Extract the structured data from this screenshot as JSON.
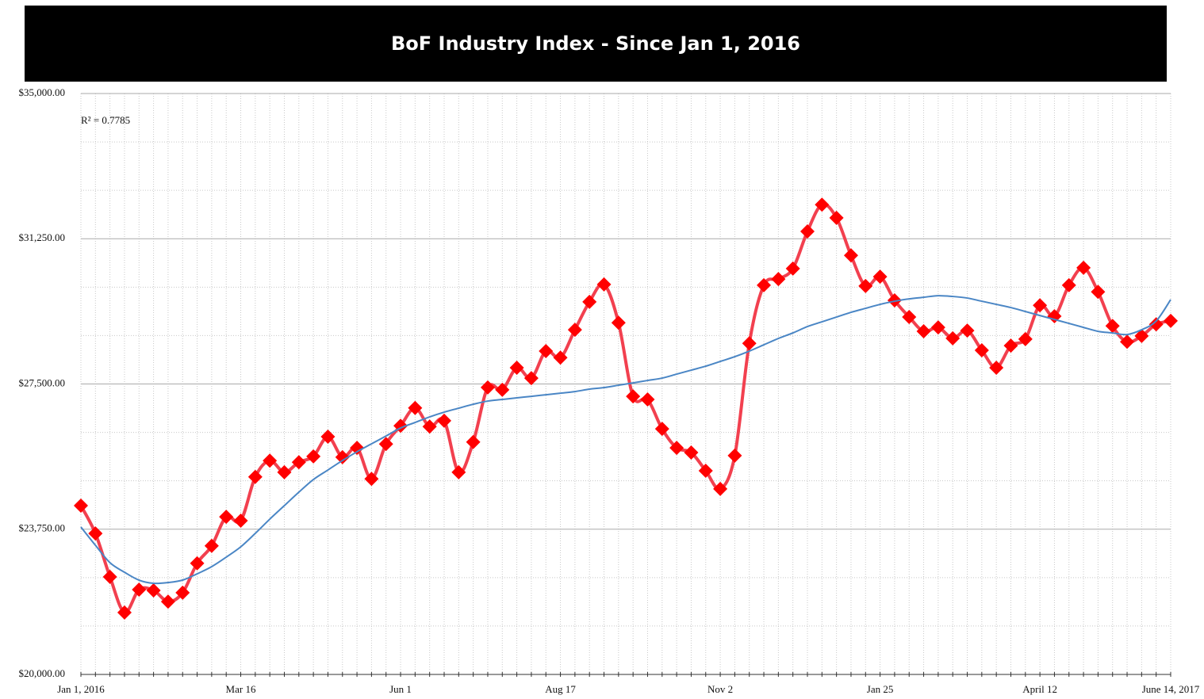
{
  "chart_data": {
    "type": "line",
    "title": "BoF Industry Index - Since Jan 1, 2016",
    "annotation": "R² = 0.7785",
    "categories": [
      "Jan 1, 2016",
      null,
      null,
      null,
      null,
      null,
      null,
      null,
      null,
      null,
      null,
      "Mar 16",
      null,
      null,
      null,
      null,
      null,
      null,
      null,
      null,
      null,
      null,
      "Jun 1",
      null,
      null,
      null,
      null,
      null,
      null,
      null,
      null,
      null,
      null,
      "Aug 17",
      null,
      null,
      null,
      null,
      null,
      null,
      null,
      null,
      null,
      null,
      "Nov 2",
      null,
      null,
      null,
      null,
      null,
      null,
      null,
      null,
      null,
      null,
      "Jan 25",
      null,
      null,
      null,
      null,
      null,
      null,
      null,
      null,
      null,
      null,
      "April 12",
      null,
      null,
      null,
      null,
      null,
      null,
      null,
      null,
      "June 14, 2017"
    ],
    "series": [
      {
        "color": "#ff0000",
        "line_color": "#f2404f",
        "marker": "diamond",
        "values": [
          24360,
          23640,
          22520,
          21600,
          22190,
          22170,
          21880,
          22110,
          22870,
          23320,
          24070,
          23970,
          25100,
          25520,
          25220,
          25480,
          25630,
          26140,
          25610,
          25850,
          25050,
          25950,
          26420,
          26880,
          26400,
          26550,
          25220,
          26000,
          27410,
          27350,
          27920,
          27650,
          28350,
          28180,
          28900,
          29620,
          30070,
          29080,
          27180,
          27100,
          26340,
          25850,
          25730,
          25260,
          24790,
          25650,
          28550,
          30050,
          30210,
          30480,
          31440,
          32130,
          31790,
          30820,
          30030,
          30270,
          29660,
          29230,
          28860,
          28960,
          28680,
          28880,
          28370,
          27920,
          28490,
          28660,
          29530,
          29250,
          30050,
          30500,
          29880,
          29000,
          28590,
          28740,
          29040,
          29130
        ]
      },
      {
        "color": "#4a86c5",
        "trendline": true,
        "values": [
          23806,
          23335,
          22885,
          22639,
          22435,
          22353,
          22373,
          22435,
          22598,
          22783,
          23028,
          23294,
          23642,
          24010,
          24358,
          24706,
          25033,
          25279,
          25524,
          25749,
          25954,
          26158,
          26363,
          26506,
          26650,
          26772,
          26875,
          26977,
          27059,
          27100,
          27141,
          27181,
          27222,
          27263,
          27304,
          27366,
          27407,
          27468,
          27529,
          27591,
          27652,
          27754,
          27857,
          27959,
          28082,
          28204,
          28348,
          28511,
          28675,
          28818,
          28982,
          29105,
          29227,
          29350,
          29453,
          29555,
          29637,
          29698,
          29739,
          29780,
          29760,
          29719,
          29637,
          29555,
          29473,
          29371,
          29268,
          29166,
          29064,
          28961,
          28859,
          28818,
          28777,
          28900,
          29125,
          29678
        ]
      }
    ],
    "ylim": [
      20000,
      35000
    ],
    "yticks": [
      {
        "value": 20000,
        "label": "$20,000.00"
      },
      {
        "value": 23750,
        "label": "$23,750.00"
      },
      {
        "value": 27500,
        "label": "$27,500.00"
      },
      {
        "value": 31250,
        "label": "$31,250.00"
      },
      {
        "value": 35000,
        "label": "$35,000.00"
      }
    ],
    "yticks_minor": [
      21250,
      22500,
      25000,
      26250,
      28750,
      30000,
      32500,
      33750
    ],
    "grid": true
  }
}
